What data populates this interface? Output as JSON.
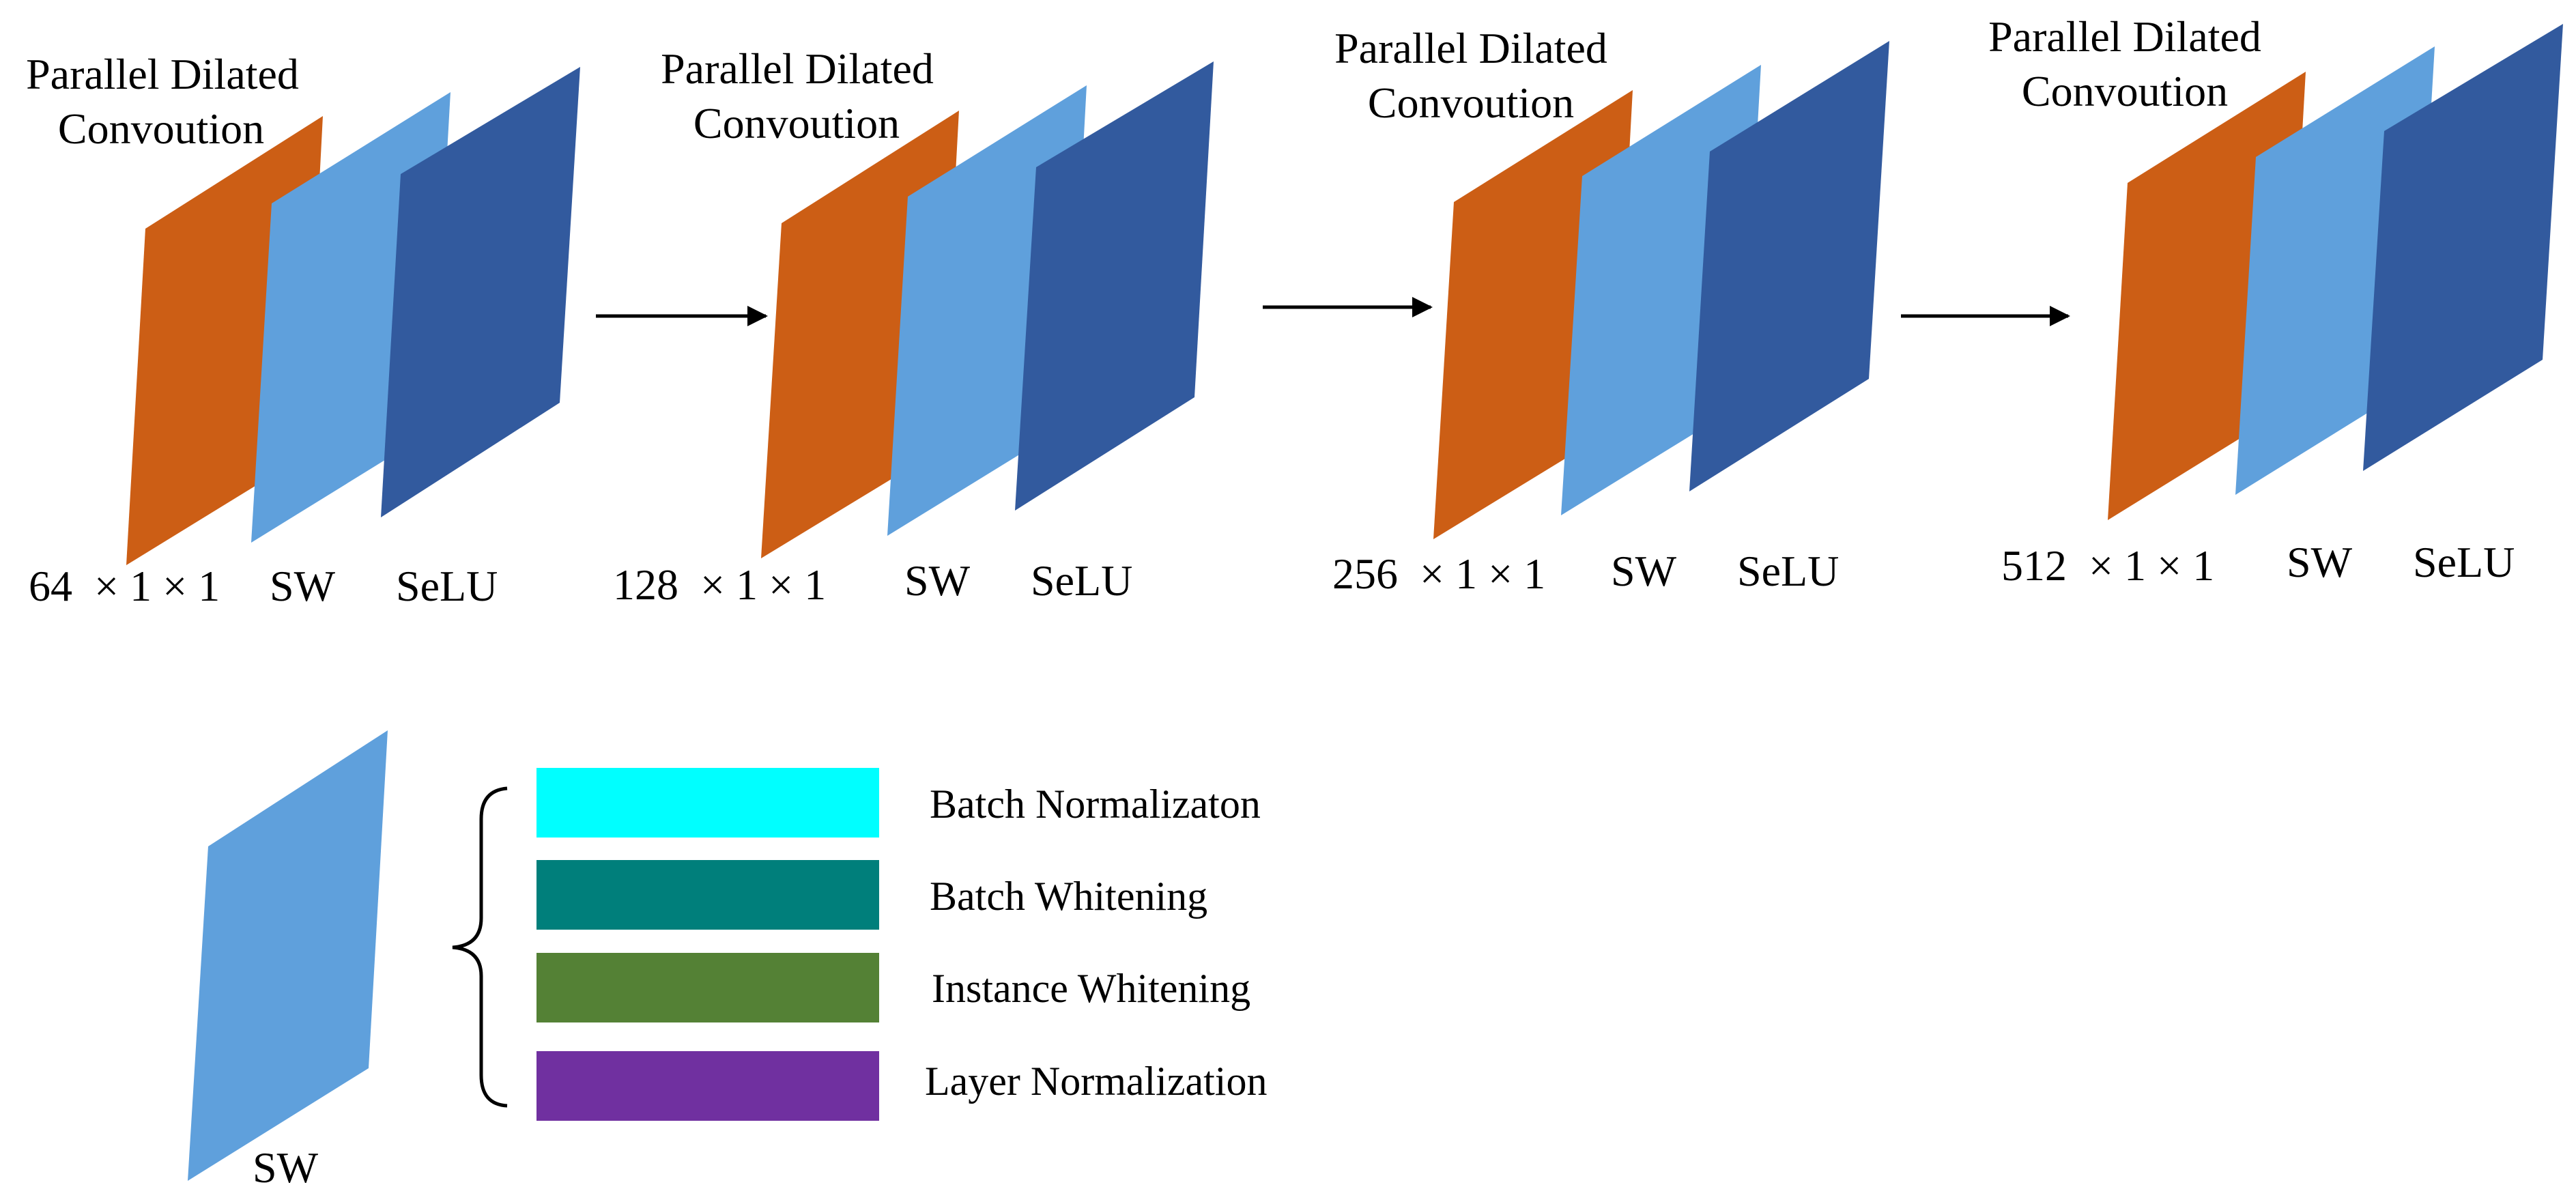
{
  "colors": {
    "conv": "#CC5E15",
    "sw": "#5FA0DC",
    "selu": "#325A9E",
    "arrow": "#000000",
    "batch_normalization": "#00FFFF",
    "batch_whitening": "#007F7B",
    "instance_whitening": "#548135",
    "layer_normalization": "#7030A0"
  },
  "stages": [
    {
      "title_line1": "Parallel Dilated",
      "title_line2": "Convoution",
      "dims": "64  × 1 × 1",
      "sw_label": "SW",
      "selu_label": "SeLU"
    },
    {
      "title_line1": "Parallel Dilated",
      "title_line2": "Convoution",
      "dims": "128  × 1 × 1",
      "sw_label": "SW",
      "selu_label": "SeLU"
    },
    {
      "title_line1": "Parallel Dilated",
      "title_line2": "Convoution",
      "dims": "256  × 1 × 1",
      "sw_label": "SW",
      "selu_label": "SeLU"
    },
    {
      "title_line1": "Parallel Dilated",
      "title_line2": "Convoution",
      "dims": "512  × 1 × 1",
      "sw_label": "SW",
      "selu_label": "SeLU"
    }
  ],
  "legend": {
    "sw_label": "SW",
    "items": [
      {
        "label": "Batch Normalizaton",
        "color_key": "batch_normalization"
      },
      {
        "label": "Batch Whitening",
        "color_key": "batch_whitening"
      },
      {
        "label": "Instance Whitening",
        "color_key": "instance_whitening"
      },
      {
        "label": "Layer Normalization",
        "color_key": "layer_normalization"
      }
    ]
  }
}
